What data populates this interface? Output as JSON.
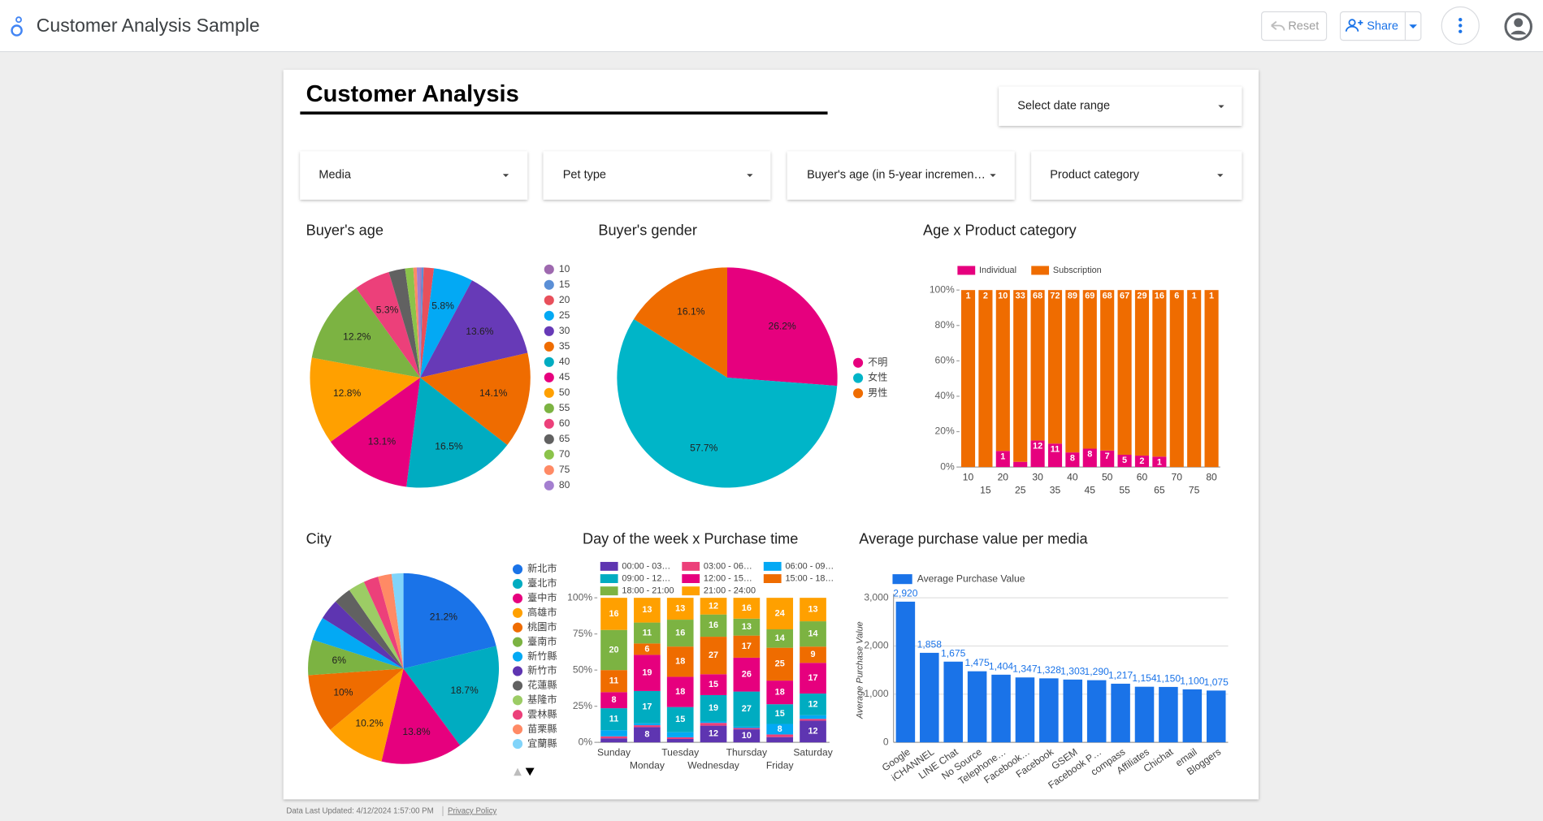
{
  "header": {
    "app_title": "Customer Analysis Sample",
    "reset": "Reset",
    "share": "Share"
  },
  "report_title": "Customer Analysis",
  "filters": [
    "Select date range",
    "Media",
    "Pet type",
    "Buyer's age (in 5-year incremen…",
    "Product category"
  ],
  "footer": {
    "updated": "Data Last Updated: 4/12/2024 1:57:00 PM",
    "privacy": "Privacy Policy"
  },
  "chart_data": [
    {
      "type": "pie",
      "title": "Buyer's age",
      "categories": [
        "10",
        "15",
        "20",
        "25",
        "30",
        "35",
        "40",
        "45",
        "50",
        "55",
        "60",
        "65",
        "70",
        "75",
        "80"
      ],
      "values": [
        0.2,
        0.3,
        1.5,
        5.8,
        13.6,
        14.1,
        16.5,
        13.1,
        12.8,
        12.2,
        5.3,
        2.4,
        1.2,
        0.5,
        0.5
      ],
      "value_labels": [
        null,
        null,
        null,
        "5.8%",
        "13.6%",
        "14.1%",
        "16.5%",
        "13.1%",
        "12.8%",
        "12.2%",
        "5.3%",
        null,
        null,
        null,
        null
      ],
      "colors": [
        "#9e69af",
        "#5b8fd6",
        "#e8505b",
        "#03a9f4",
        "#673ab7",
        "#ef6c00",
        "#00acc1",
        "#e6007e",
        "#ffa000",
        "#7cb342",
        "#ec407a",
        "#616161",
        "#8bc34a",
        "#ff8a65",
        "#a47fd0"
      ]
    },
    {
      "type": "pie",
      "title": "Buyer's gender",
      "categories": [
        "不明",
        "女性",
        "男性"
      ],
      "values": [
        26.2,
        57.7,
        16.1
      ],
      "value_labels": [
        "26.2%",
        "57.7%",
        "16.1%"
      ],
      "colors": [
        "#e6007e",
        "#00b5c8",
        "#ef6c00"
      ]
    },
    {
      "type": "stacked100",
      "title": "Age x Product category",
      "categories": [
        "10",
        "15",
        "20",
        "25",
        "30",
        "35",
        "40",
        "45",
        "50",
        "55",
        "60",
        "65",
        "70",
        "75",
        "80"
      ],
      "series": [
        {
          "name": "Individual",
          "color": "#e6007e",
          "values": [
            0,
            0,
            1,
            1,
            12,
            11,
            8,
            8,
            7,
            5,
            2,
            1,
            0,
            0,
            0
          ]
        },
        {
          "name": "Subscription",
          "color": "#ef6c00",
          "values": [
            1,
            2,
            10,
            33,
            68,
            72,
            89,
            69,
            68,
            67,
            29,
            16,
            6,
            1,
            1
          ]
        }
      ],
      "ylim": [
        0,
        100
      ],
      "yticks": [
        {
          "value": 0,
          "label": "0%"
        },
        {
          "value": 20,
          "label": "20%"
        },
        {
          "value": 40,
          "label": "40%"
        },
        {
          "value": 60,
          "label": "60%"
        },
        {
          "value": 80,
          "label": "80%"
        },
        {
          "value": 100,
          "label": "100%"
        }
      ]
    },
    {
      "type": "pie",
      "title": "City",
      "categories": [
        "新北市",
        "臺北市",
        "臺中市",
        "高雄市",
        "桃園市",
        "臺南市",
        "新竹縣",
        "新竹市",
        "花蓮縣",
        "基隆市",
        "雲林縣",
        "苗栗縣",
        "宜蘭縣"
      ],
      "values": [
        21.2,
        18.7,
        13.8,
        10.2,
        10,
        6,
        4,
        3.5,
        3,
        2.8,
        2.5,
        2.3,
        2
      ],
      "value_labels": [
        "21.2%",
        "18.7%",
        "13.8%",
        "10.2%",
        "10%",
        "6%",
        null,
        null,
        null,
        null,
        null,
        null,
        null
      ],
      "colors": [
        "#1a73e8",
        "#00acc1",
        "#e6007e",
        "#ffa000",
        "#ef6c00",
        "#7cb342",
        "#03a9f4",
        "#5e35b1",
        "#616161",
        "#9ccc65",
        "#ec407a",
        "#ff8a65",
        "#81d4fa"
      ]
    },
    {
      "type": "stacked100",
      "title": "Day of the week x Purchase time",
      "categories": [
        "Sunday",
        "Monday",
        "Tuesday",
        "Wednesday",
        "Thursday",
        "Friday",
        "Saturday"
      ],
      "series": [
        {
          "name": "00:00 - 03…",
          "color": "#5e35b1",
          "values": [
            2,
            8,
            2,
            12,
            10,
            4,
            12
          ]
        },
        {
          "name": "03:00 - 06…",
          "color": "#ec407a",
          "values": [
            1,
            1,
            1,
            2,
            1,
            2,
            1
          ]
        },
        {
          "name": "06:00 - 09…",
          "color": "#03a9f4",
          "values": [
            3,
            1,
            3,
            1,
            1,
            8,
            2
          ]
        },
        {
          "name": "09:00 - 12…",
          "color": "#00acc1",
          "values": [
            11,
            17,
            15,
            19,
            27,
            15,
            12
          ]
        },
        {
          "name": "12:00 - 15…",
          "color": "#e6007e",
          "values": [
            8,
            19,
            18,
            15,
            26,
            18,
            17
          ]
        },
        {
          "name": "15:00 - 18…",
          "color": "#ef6c00",
          "values": [
            11,
            6,
            18,
            27,
            17,
            25,
            9
          ]
        },
        {
          "name": "18:00 - 21:00",
          "color": "#7cb342",
          "values": [
            20,
            11,
            16,
            16,
            13,
            14,
            14
          ]
        },
        {
          "name": "21:00 - 24:00",
          "color": "#ffa000",
          "values": [
            16,
            13,
            13,
            12,
            16,
            24,
            13
          ]
        }
      ],
      "ylim": [
        0,
        100
      ],
      "yticks": [
        {
          "value": 0,
          "label": "0%"
        },
        {
          "value": 25,
          "label": "25%"
        },
        {
          "value": 50,
          "label": "50%"
        },
        {
          "value": 75,
          "label": "75%"
        },
        {
          "value": 100,
          "label": "100%"
        }
      ]
    },
    {
      "type": "bar",
      "title": "Average purchase value per media",
      "y_label": "Average Purchase Value",
      "categories": [
        "Google",
        "iCHANNEL",
        "LINE Chat",
        "No Source",
        "Telephone…",
        "Facebook…",
        "Facebook",
        "GSEM",
        "Facebook P…",
        "compass",
        "Affiliates",
        "Chichat",
        "email",
        "Bloggers"
      ],
      "series": [
        {
          "name": "Average Purchase Value",
          "color": "#1a73e8",
          "values": [
            2920,
            1858,
            1675,
            1475,
            1404,
            1347,
            1328,
            1303,
            1290,
            1217,
            1154,
            1150,
            1100,
            1075
          ],
          "value_labels": [
            "2,920",
            "1,858",
            "1,675",
            "1,475",
            "1,404",
            "1,347",
            "1,328",
            "1,303",
            "1,290",
            "1,217",
            "1,154",
            "1,150",
            "1,100",
            "1,075"
          ]
        }
      ],
      "ylim": [
        0,
        3000
      ],
      "yticks": [
        0,
        {
          "value": 1000,
          "label": "1,000"
        },
        {
          "value": 2000,
          "label": "2,000"
        },
        {
          "value": 3000,
          "label": "3,000"
        }
      ],
      "grid": true
    }
  ]
}
